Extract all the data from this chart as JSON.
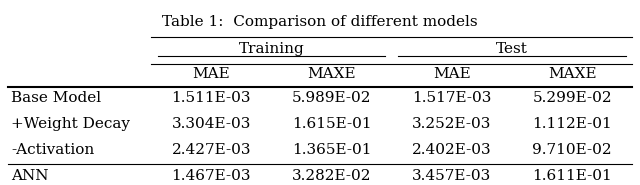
{
  "title": "Table 1:  Comparison of different models",
  "col_groups": [
    "Training",
    "Test"
  ],
  "col_headers": [
    "MAE",
    "MAXE",
    "MAE",
    "MAXE"
  ],
  "row_labels": [
    "Base Model",
    "+Weight Decay",
    "-Activation",
    "ANN"
  ],
  "data": [
    [
      "1.511E-03",
      "5.989E-02",
      "1.517E-03",
      "5.299E-02"
    ],
    [
      "3.304E-03",
      "1.615E-01",
      "3.252E-03",
      "1.112E-01"
    ],
    [
      "2.427E-03",
      "1.365E-01",
      "2.402E-03",
      "9.710E-02"
    ],
    [
      "1.467E-03",
      "3.282E-02",
      "3.457E-03",
      "1.611E-01"
    ]
  ],
  "background_color": "#ffffff",
  "font_size": 11
}
